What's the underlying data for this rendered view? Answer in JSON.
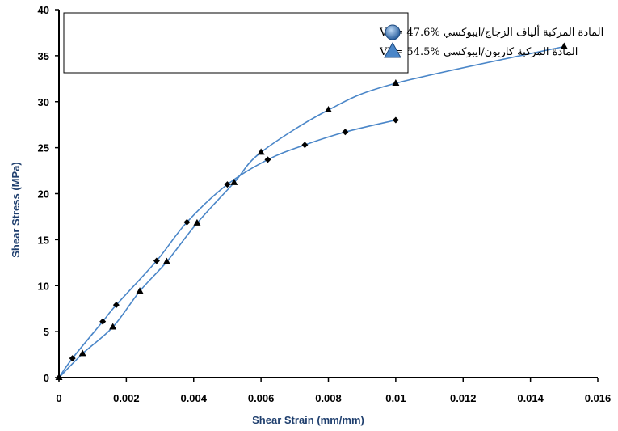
{
  "chart_data": {
    "type": "line",
    "xlabel": "Shear Strain (mm/mm)",
    "ylabel": "Shear Stress (MPa)",
    "xlim": [
      0,
      0.016
    ],
    "ylim": [
      0,
      40
    ],
    "x_ticks": [
      "0",
      "0.002",
      "0.004",
      "0.006",
      "0.008",
      "0.01",
      "0.012",
      "0.014",
      "0.016"
    ],
    "y_ticks": [
      "0",
      "5",
      "10",
      "15",
      "20",
      "25",
      "30",
      "35",
      "40"
    ],
    "legend_position": "top-left",
    "grid": false,
    "series": [
      {
        "name": "المادة المركبة ألياف الزجاج/ايبوكسي VF= 47.6%",
        "marker": "diamond",
        "legend_marker": "circle",
        "color": "#4a86c8",
        "x": [
          0,
          0.0004,
          0.0013,
          0.0017,
          0.0029,
          0.0038,
          0.005,
          0.0062,
          0.0073,
          0.0085,
          0.01
        ],
        "y": [
          0,
          2.1,
          6.1,
          7.9,
          12.7,
          16.9,
          21.0,
          23.7,
          25.3,
          26.7,
          28.0
        ]
      },
      {
        "name": "المادة المركبة كاربون/ايبوكسي VF= 54.5%",
        "marker": "triangle",
        "legend_marker": "triangle",
        "color": "#4a86c8",
        "x": [
          0,
          0.0007,
          0.0016,
          0.0024,
          0.0032,
          0.0041,
          0.0052,
          0.006,
          0.008,
          0.01,
          0.015
        ],
        "y": [
          0,
          2.6,
          5.5,
          9.4,
          12.6,
          16.8,
          21.2,
          24.5,
          29.1,
          32.0,
          36.0
        ]
      }
    ]
  }
}
